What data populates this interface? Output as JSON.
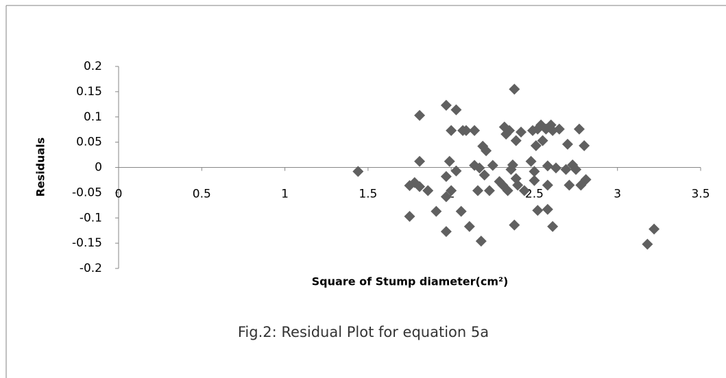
{
  "chart_data": {
    "type": "scatter",
    "title": "Fig.2: Residual Plot for equation 5a",
    "x_label": "Square of Stump diameter(cm²)",
    "y_label": "Residuals",
    "color": "#606060",
    "xlim": [
      0,
      3.5
    ],
    "xticks": [
      0,
      0.5,
      1,
      1.5,
      2,
      2.5,
      3,
      3.5
    ],
    "ylim": [
      -0.2,
      0.2
    ],
    "yticks": [
      0.2,
      0.15,
      0.1,
      0.05,
      0,
      -0.05,
      -0.1,
      -0.15,
      -0.2
    ],
    "x": [
      1.44,
      1.75,
      1.75,
      1.78,
      1.81,
      1.81,
      1.81,
      1.86,
      1.91,
      1.97,
      1.97,
      1.97,
      1.97,
      1.99,
      2.0,
      2.0,
      2.03,
      2.03,
      2.06,
      2.07,
      2.09,
      2.11,
      2.14,
      2.14,
      2.16,
      2.17,
      2.19,
      2.2,
      2.21,
      2.23,
      2.25,
      2.18,
      2.29,
      2.31,
      2.32,
      2.33,
      2.34,
      2.35,
      2.36,
      2.37,
      2.38,
      2.38,
      2.39,
      2.39,
      2.4,
      2.42,
      2.44,
      2.48,
      2.49,
      2.5,
      2.5,
      2.51,
      2.52,
      2.52,
      2.54,
      2.55,
      2.57,
      2.58,
      2.58,
      2.6,
      2.61,
      2.63,
      2.61,
      2.65,
      2.69,
      2.71,
      2.7,
      2.73,
      2.75,
      2.77,
      2.78,
      2.8,
      2.81,
      3.18,
      3.22,
      2.58
    ],
    "values": [
      -0.008,
      -0.097,
      -0.036,
      -0.03,
      0.103,
      0.012,
      -0.038,
      -0.046,
      -0.087,
      0.123,
      -0.018,
      -0.058,
      -0.127,
      0.012,
      0.073,
      -0.046,
      0.114,
      -0.007,
      -0.087,
      0.073,
      0.073,
      -0.117,
      0.073,
      0.004,
      -0.046,
      -0.001,
      0.042,
      -0.015,
      0.033,
      -0.046,
      0.004,
      -0.146,
      -0.028,
      -0.035,
      0.08,
      0.066,
      -0.046,
      0.073,
      -0.004,
      0.005,
      0.155,
      -0.114,
      0.053,
      -0.022,
      -0.035,
      0.07,
      -0.046,
      0.012,
      0.073,
      -0.008,
      -0.026,
      0.043,
      0.076,
      -0.085,
      0.084,
      0.053,
      0.076,
      0.003,
      -0.035,
      0.084,
      0.073,
      -0.001,
      -0.117,
      0.076,
      -0.004,
      -0.035,
      0.046,
      0.005,
      -0.004,
      0.076,
      -0.035,
      0.043,
      -0.024,
      -0.152,
      -0.122,
      -0.083
    ]
  }
}
